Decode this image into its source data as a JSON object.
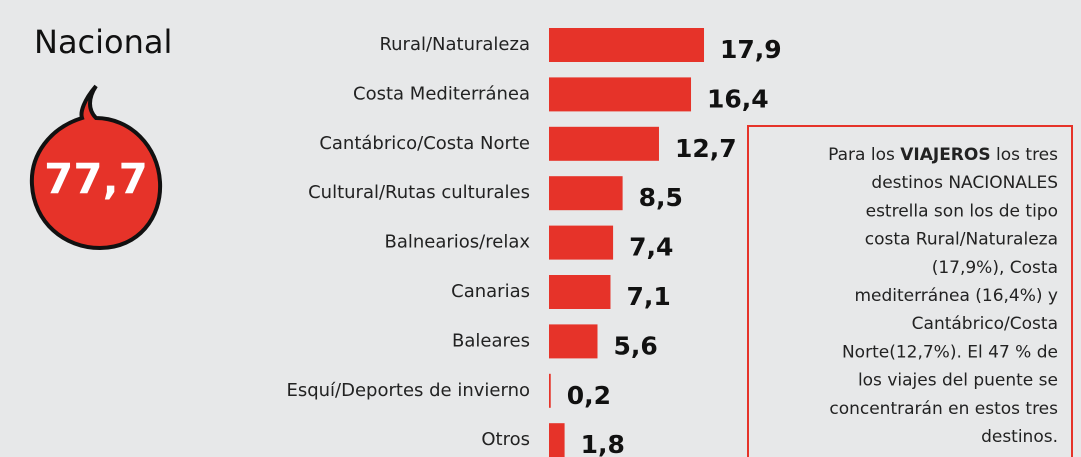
{
  "chart_data": {
    "type": "bar",
    "orientation": "horizontal",
    "title": "Nacional",
    "badge": "77,7",
    "categories": [
      "Rural/Naturaleza",
      "Costa Mediterránea",
      "Cantábrico/Costa Norte",
      "Cultural/Rutas culturales",
      "Balnearios/relax",
      "Canarias",
      "Baleares",
      "Esquí/Deportes de invierno",
      "Otros"
    ],
    "values": [
      17.9,
      16.4,
      12.7,
      8.5,
      7.4,
      7.1,
      5.6,
      0.2,
      1.8
    ],
    "value_labels": [
      "17,9",
      "16,4",
      "12,7",
      "8,5",
      "7,4",
      "7,1",
      "5,6",
      "0,2",
      "1,8"
    ],
    "color": "#e63329",
    "note": {
      "first_line": [
        "Para los ",
        "VIAJEROS",
        " los tres"
      ],
      "lines": [
        "destinos NACIONALES",
        "estrella son los de tipo",
        "costa Rural/Naturaleza",
        "(17,9%), Costa",
        "mediterránea (16,4%) y",
        "Cantábrico/Costa",
        "Norte(12,7%). El 47 % de",
        "los viajes del puente se",
        "concentrarán en estos tres",
        "destinos."
      ]
    }
  }
}
